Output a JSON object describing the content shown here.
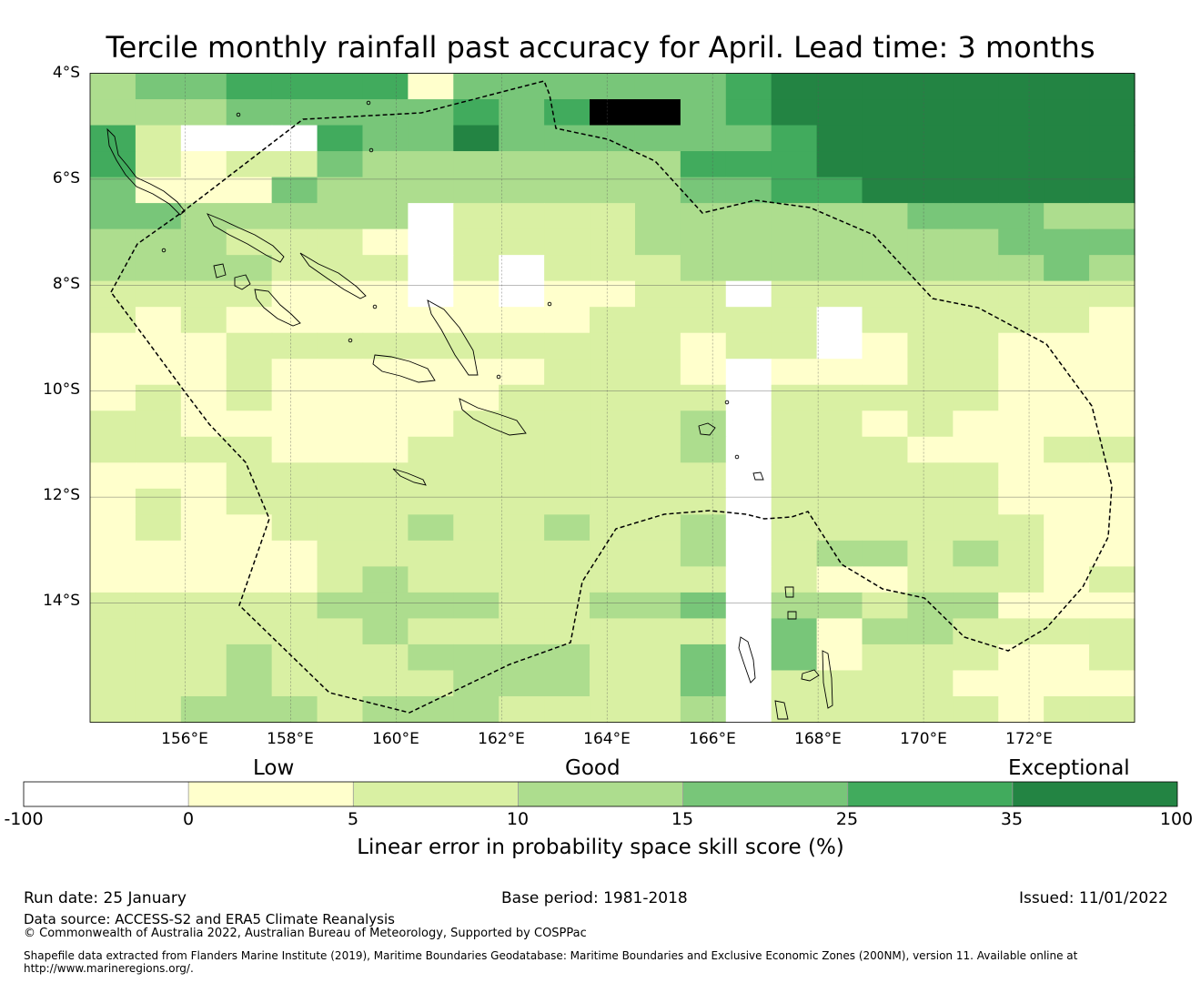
{
  "title": "Tercile monthly rainfall past accuracy for April. Lead time: 3 months",
  "map": {
    "lon_range": [
      154.2,
      174.0
    ],
    "lat_range": [
      -16.25,
      -4.0
    ],
    "cell_deg": [
      0.833,
      0.556
    ],
    "lat_labels": [
      "4°S",
      "6°S",
      "8°S",
      "10°S",
      "12°S",
      "14°S"
    ],
    "lon_labels": [
      "156°E",
      "158°E",
      "160°E",
      "162°E",
      "164°E",
      "166°E",
      "168°E",
      "170°E",
      "172°E"
    ],
    "grid_rows": [
      "23344440333333455555555",
      "22233333434663455555555",
      "41122433533333345555555",
      "41011322222224445555555",
      "30003222222223344555555",
      "33222222111122222233322",
      "22211101111122222222333",
      "22221110111112222222232",
      "11110000000011111111111",
      "10100000000111111111110",
      "00011111111110111011000",
      "00010000001110100011000",
      "01010000011111111111000",
      "11000000111112111010000",
      "11110001111112111100011",
      "00011111111111111111000",
      "01011111111111111111000",
      "01001112112112111111100",
      "00000111111112212212100",
      "00000121111111210011101",
      "11111222211223322122000",
      "11111121111111330221111",
      "11121112222113330111001",
      "11121111222113311110000",
      "11222122211112211111011"
    ],
    "blank_cells": [
      [
        2,
        2
      ],
      [
        2,
        3
      ],
      [
        2,
        4
      ],
      [
        5,
        7
      ],
      [
        6,
        7
      ],
      [
        7,
        7
      ],
      [
        8,
        7
      ],
      [
        7,
        9
      ],
      [
        8,
        9
      ],
      [
        8,
        14
      ],
      [
        9,
        16
      ],
      [
        10,
        16
      ],
      [
        11,
        14
      ],
      [
        12,
        14
      ],
      [
        13,
        14
      ],
      [
        14,
        14
      ],
      [
        15,
        14
      ],
      [
        16,
        14
      ],
      [
        17,
        14
      ],
      [
        18,
        14
      ],
      [
        19,
        14
      ],
      [
        20,
        14
      ],
      [
        21,
        14
      ],
      [
        22,
        14
      ],
      [
        23,
        14
      ],
      [
        24,
        14
      ]
    ]
  },
  "colorbar": {
    "category_labels": {
      "low": "Low",
      "good": "Good",
      "exceptional": "Exceptional"
    },
    "ticks": [
      "-100",
      "0",
      "5",
      "10",
      "15",
      "25",
      "35",
      "100"
    ],
    "colors": [
      "#ffffff",
      "#ffffcc",
      "#d9f0a3",
      "#addd8e",
      "#78c679",
      "#41ab5d",
      "#238443"
    ],
    "title": "Linear error in probability space skill score (%)"
  },
  "footer": {
    "run_date": "Run date: 25 January",
    "base_period": "Base period: 1981-2018",
    "issued": "Issued: 11/01/2022",
    "data_source": "Data source: ACCESS-S2 and ERA5 Climate Reanalysis",
    "copyright": "© Commonwealth of Australia 2022, Australian Bureau of Meteorology, Supported by COSPPac",
    "shapefile_line1": "Shapefile data extracted from Flanders Marine Institute (2019), Maritime Boundaries Geodatabase: Maritime Boundaries and Exclusive Economic Zones (200NM), version 11. Available online at",
    "shapefile_line2": "http://www.marineregions.org/."
  }
}
